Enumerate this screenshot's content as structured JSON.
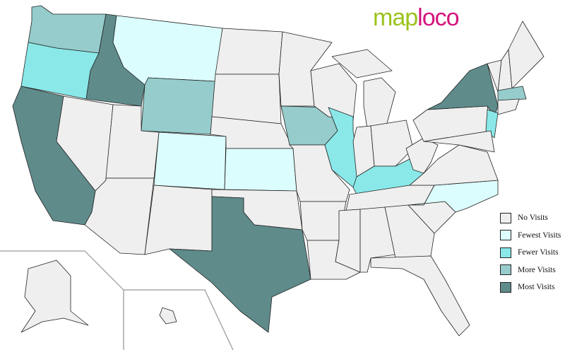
{
  "logo": {
    "part1": "map",
    "part2": "loco"
  },
  "colors": {
    "none": "#efefef",
    "fewest": "#dcfdfd",
    "fewer": "#8ae8e8",
    "more": "#96cccc",
    "most": "#5f8b8b"
  },
  "legend": [
    {
      "key": "none",
      "label": "No Visits"
    },
    {
      "key": "fewest",
      "label": "Fewest Visits"
    },
    {
      "key": "fewer",
      "label": "Fewer Visits"
    },
    {
      "key": "more",
      "label": "More Visits"
    },
    {
      "key": "most",
      "label": "Most Visits"
    }
  ],
  "states": {
    "WA": "more",
    "OR": "fewer",
    "ID": "most",
    "MT": "fewest",
    "WY": "more",
    "CA": "most",
    "NV": "none",
    "UT": "none",
    "AZ": "none",
    "CO": "fewest",
    "NM": "none",
    "ND": "none",
    "SD": "none",
    "NE": "none",
    "KS": "fewest",
    "OK": "none",
    "TX": "most",
    "MN": "none",
    "IA": "more",
    "MO": "none",
    "AR": "none",
    "LA": "none",
    "WI": "none",
    "IL": "fewer",
    "MI": "none",
    "IN": "none",
    "OH": "none",
    "KY": "fewer",
    "TN": "none",
    "MS": "none",
    "AL": "none",
    "GA": "none",
    "FL": "none",
    "SC": "none",
    "NC": "fewest",
    "VA": "none",
    "WV": "none",
    "PA": "none",
    "NY": "most",
    "NJ": "fewer",
    "MD": "none",
    "VT": "none",
    "NH": "none",
    "ME": "none",
    "MA": "more",
    "CT": "none",
    "AK": "none",
    "HI": "none"
  }
}
